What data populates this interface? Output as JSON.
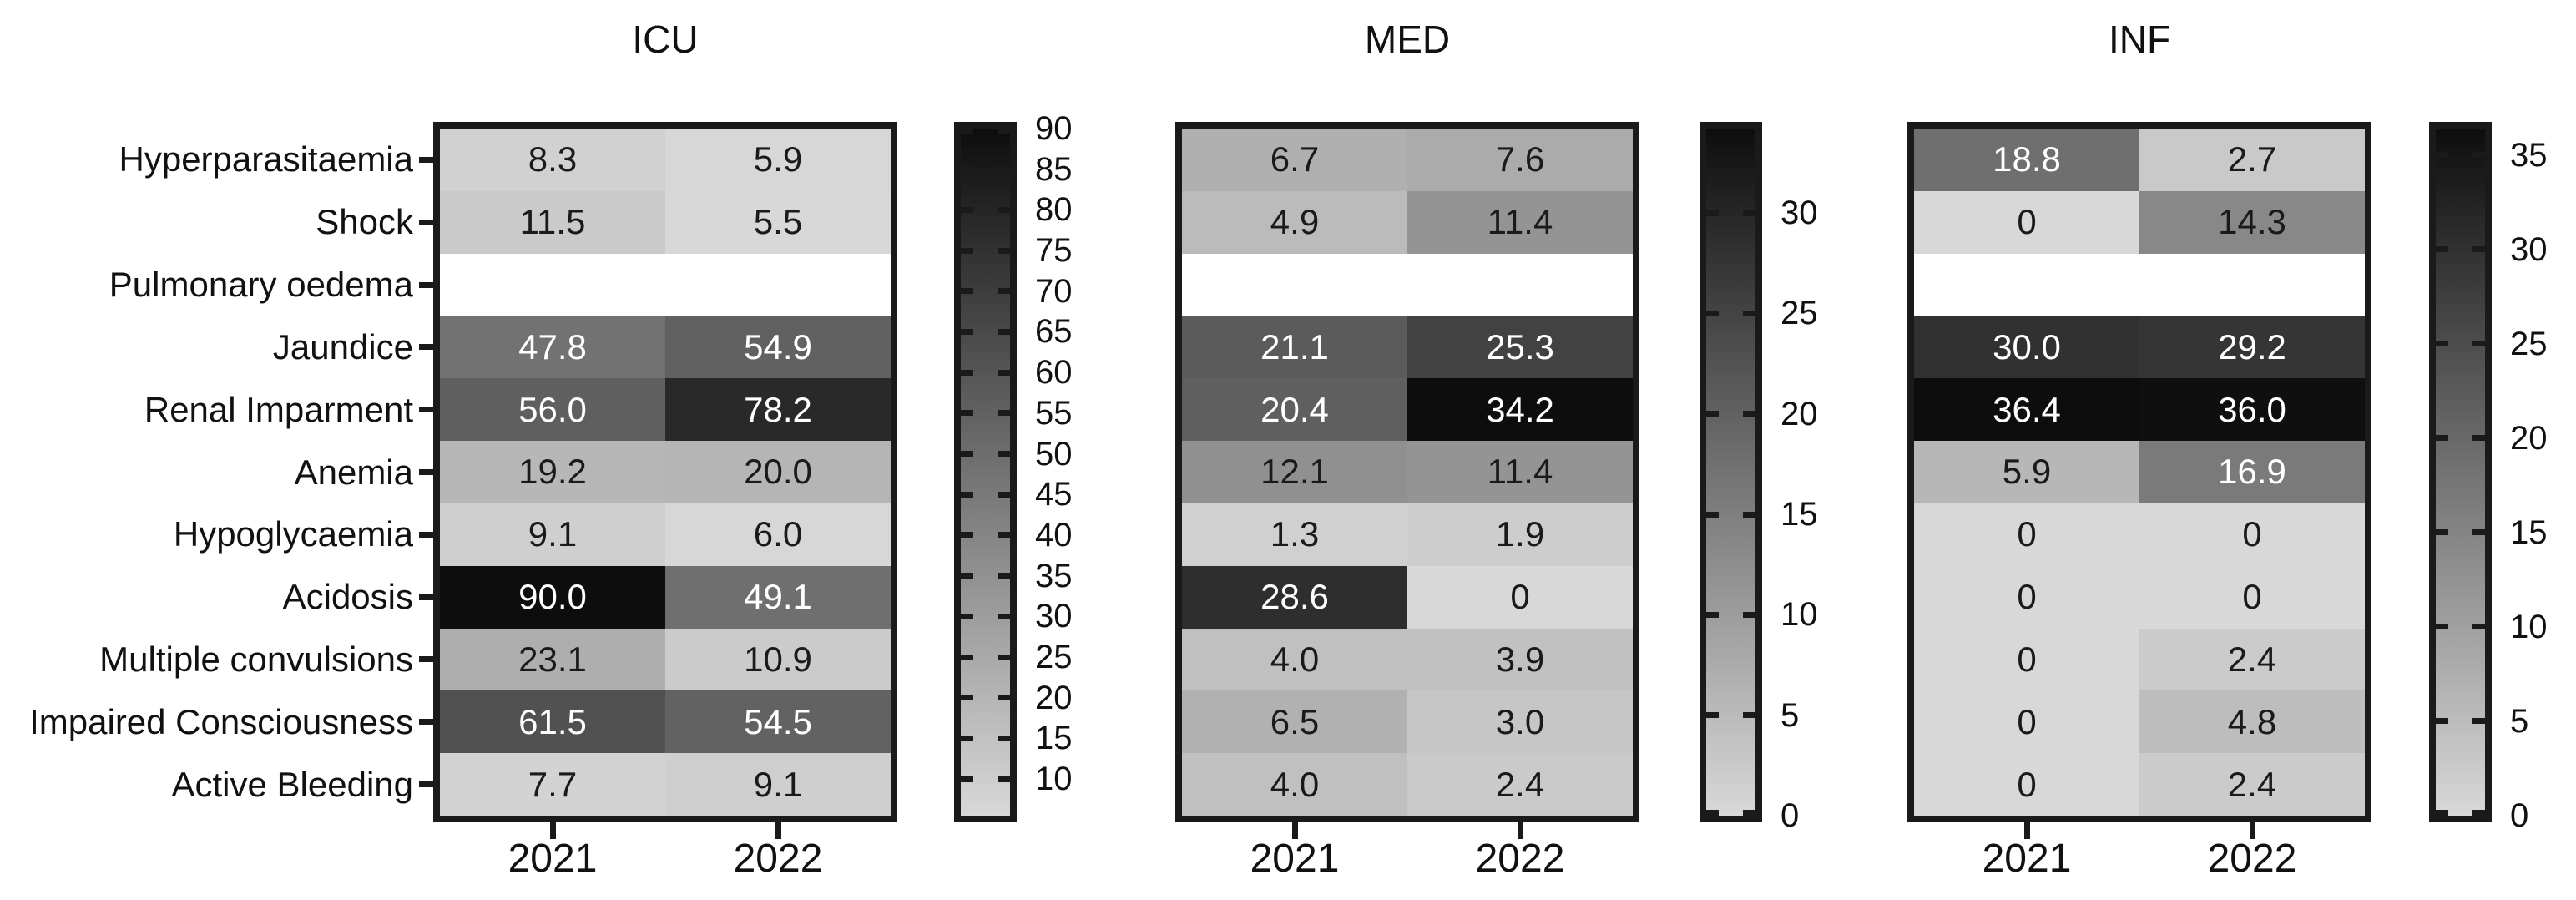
{
  "y_labels": [
    "Hyperparasitaemia",
    "Shock",
    "Pulmonary oedema",
    "Jaundice",
    "Renal Imparment",
    "Anemia",
    "Hypoglycaemia",
    "Acidosis",
    "Multiple convulsions",
    "Impaired Consciousness",
    "Active Bleeding"
  ],
  "x_labels": [
    "2021",
    "2022"
  ],
  "colormap": {
    "min_color": "#d8d8d8",
    "max_color": "#0d0d0d",
    "nan_color": "#ffffff",
    "text_light": "#ffffff",
    "text_dark": "#1a1a1a",
    "text_threshold": 0.43,
    "border_color": "#1a1a1a"
  },
  "chart_data": [
    {
      "type": "heatmap",
      "title": "ICU",
      "x": [
        "2021",
        "2022"
      ],
      "vmin": 5.5,
      "vmax": 90,
      "legend_position": "right-colorbar",
      "colorbar_ticks": [
        90,
        85,
        80,
        75,
        70,
        65,
        60,
        55,
        50,
        45,
        40,
        35,
        30,
        25,
        20,
        15,
        10
      ],
      "values": [
        [
          8.3,
          5.9
        ],
        [
          11.5,
          5.5
        ],
        [
          null,
          null
        ],
        [
          47.8,
          54.9
        ],
        [
          56.0,
          78.2
        ],
        [
          19.2,
          20.0
        ],
        [
          9.1,
          6.0
        ],
        [
          90.0,
          49.1
        ],
        [
          23.1,
          10.9
        ],
        [
          61.5,
          54.5
        ],
        [
          7.7,
          9.1
        ]
      ],
      "labels": [
        [
          "8.3",
          "5.9"
        ],
        [
          "11.5",
          "5.5"
        ],
        [
          "",
          ""
        ],
        [
          "47.8",
          "54.9"
        ],
        [
          "56.0",
          "78.2"
        ],
        [
          "19.2",
          "20.0"
        ],
        [
          "9.1",
          "6.0"
        ],
        [
          "90.0",
          "49.1"
        ],
        [
          "23.1",
          "10.9"
        ],
        [
          "61.5",
          "54.5"
        ],
        [
          "7.7",
          "9.1"
        ]
      ]
    },
    {
      "type": "heatmap",
      "title": "MED",
      "x": [
        "2021",
        "2022"
      ],
      "vmin": 0,
      "vmax": 34.2,
      "legend_position": "right-colorbar",
      "colorbar_ticks": [
        30,
        25,
        20,
        15,
        10,
        5,
        0
      ],
      "values": [
        [
          6.7,
          7.6
        ],
        [
          4.9,
          11.4
        ],
        [
          null,
          null
        ],
        [
          21.1,
          25.3
        ],
        [
          20.4,
          34.2
        ],
        [
          12.1,
          11.4
        ],
        [
          1.3,
          1.9
        ],
        [
          28.6,
          0
        ],
        [
          4.0,
          3.9
        ],
        [
          6.5,
          3.0
        ],
        [
          4.0,
          2.4
        ]
      ],
      "labels": [
        [
          "6.7",
          "7.6"
        ],
        [
          "4.9",
          "11.4"
        ],
        [
          "",
          ""
        ],
        [
          "21.1",
          "25.3"
        ],
        [
          "20.4",
          "34.2"
        ],
        [
          "12.1",
          "11.4"
        ],
        [
          "1.3",
          "1.9"
        ],
        [
          "28.6",
          "0"
        ],
        [
          "4.0",
          "3.9"
        ],
        [
          "6.5",
          "3.0"
        ],
        [
          "4.0",
          "2.4"
        ]
      ]
    },
    {
      "type": "heatmap",
      "title": "INF",
      "x": [
        "2021",
        "2022"
      ],
      "vmin": 0,
      "vmax": 36.4,
      "legend_position": "right-colorbar",
      "colorbar_ticks": [
        35,
        30,
        25,
        20,
        15,
        10,
        5,
        0
      ],
      "values": [
        [
          18.8,
          2.7
        ],
        [
          0,
          14.3
        ],
        [
          null,
          null
        ],
        [
          30.0,
          29.2
        ],
        [
          36.4,
          36.0
        ],
        [
          5.9,
          16.9
        ],
        [
          0,
          0
        ],
        [
          0,
          0
        ],
        [
          0,
          2.4
        ],
        [
          0,
          4.8
        ],
        [
          0,
          2.4
        ]
      ],
      "labels": [
        [
          "18.8",
          "2.7"
        ],
        [
          "0",
          "14.3"
        ],
        [
          "",
          ""
        ],
        [
          "30.0",
          "29.2"
        ],
        [
          "36.4",
          "36.0"
        ],
        [
          "5.9",
          "16.9"
        ],
        [
          "0",
          "0"
        ],
        [
          "0",
          "0"
        ],
        [
          "0",
          "2.4"
        ],
        [
          "0",
          "4.8"
        ],
        [
          "0",
          "2.4"
        ]
      ]
    }
  ]
}
